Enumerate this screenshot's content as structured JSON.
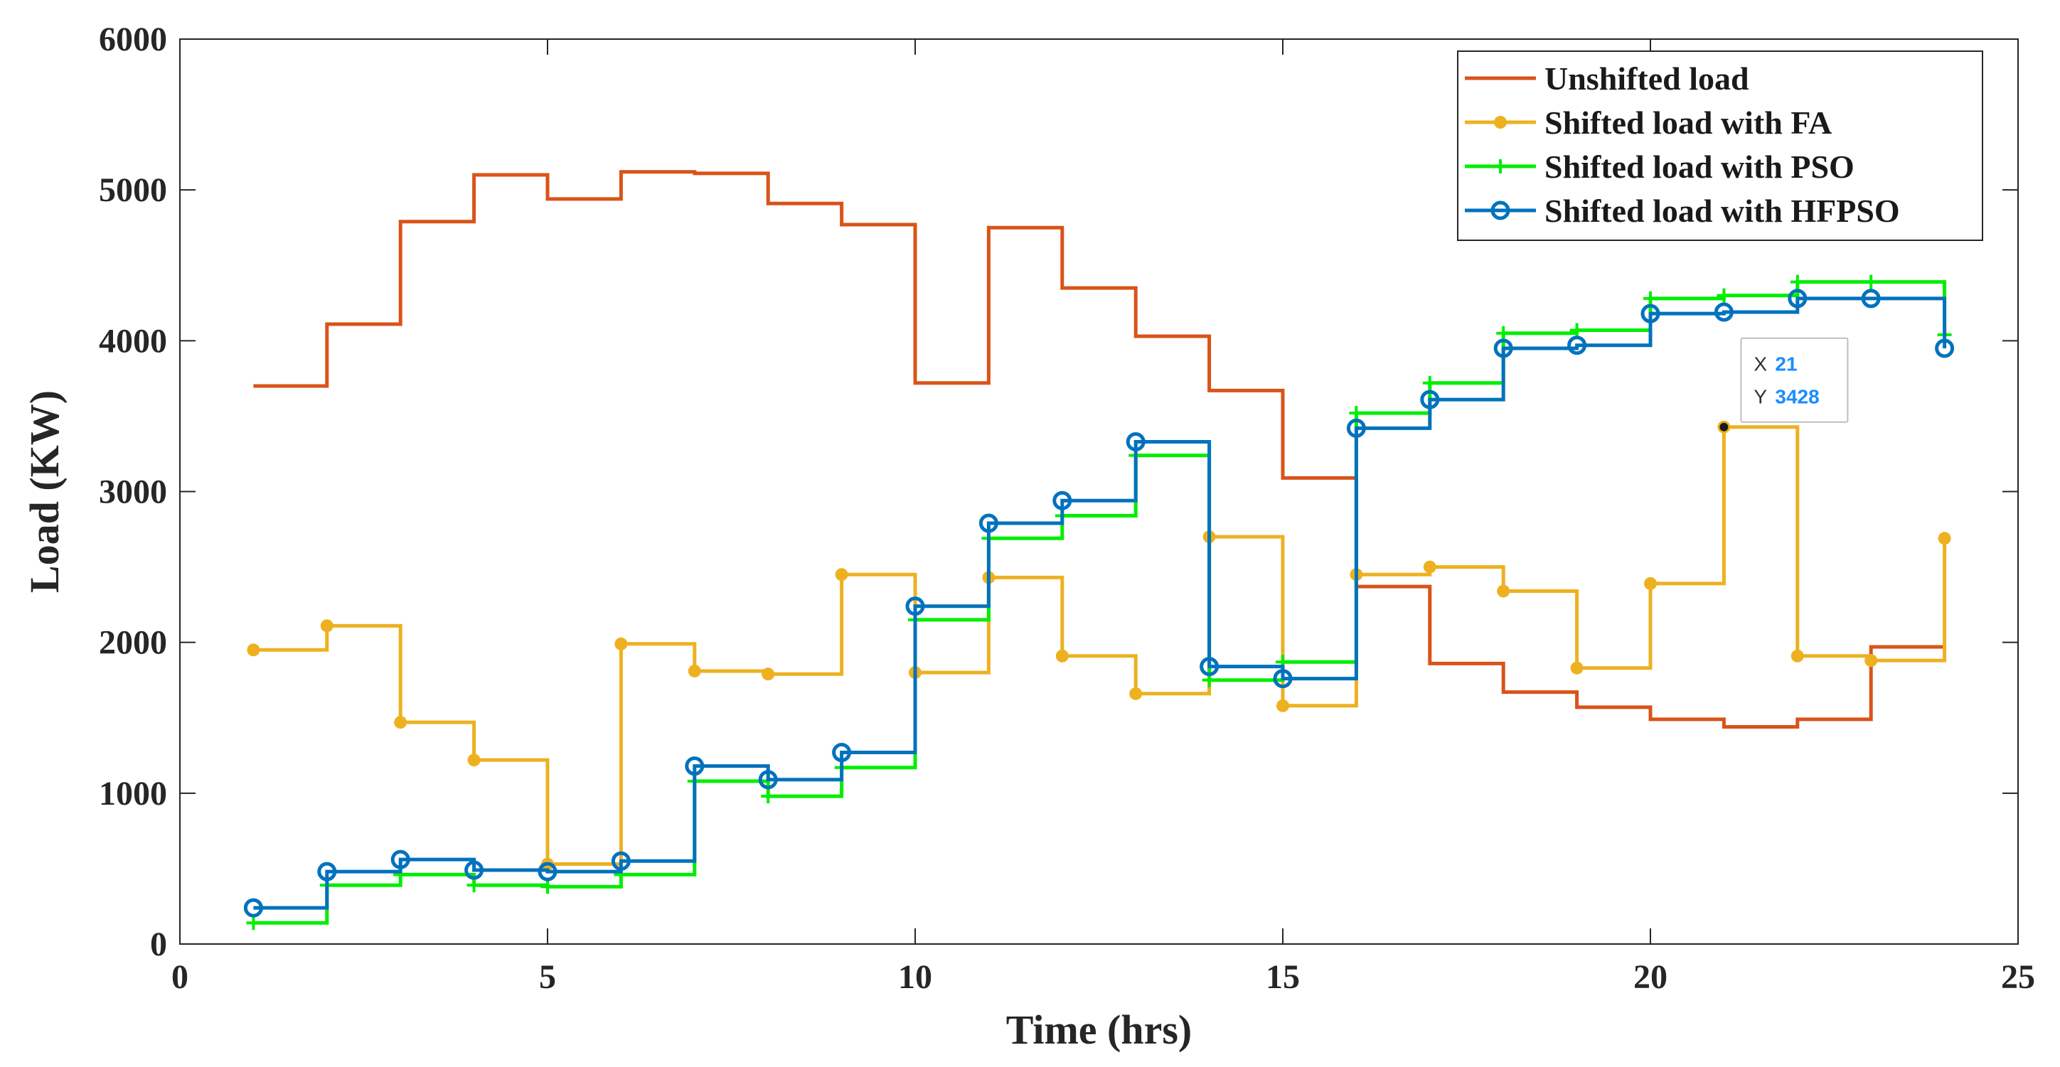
{
  "chart_data": {
    "type": "line",
    "step": true,
    "title": "",
    "xlabel": "Time (hrs)",
    "ylabel": "Load (KW)",
    "xlim": [
      0,
      25
    ],
    "ylim": [
      0,
      6000
    ],
    "xticks": [
      0,
      5,
      10,
      15,
      20,
      25
    ],
    "yticks": [
      0,
      1000,
      2000,
      3000,
      4000,
      5000,
      6000
    ],
    "x": [
      1,
      2,
      3,
      4,
      5,
      6,
      7,
      8,
      9,
      10,
      11,
      12,
      13,
      14,
      15,
      16,
      17,
      18,
      19,
      20,
      21,
      22,
      23,
      24
    ],
    "legend_position": "top-right",
    "series": [
      {
        "name": "Unshifted load",
        "color": "#d95319",
        "marker": "none",
        "values": [
          3700,
          4110,
          4790,
          5100,
          4940,
          5120,
          5110,
          4910,
          4770,
          3720,
          4750,
          4350,
          4030,
          3670,
          3090,
          2370,
          1860,
          1670,
          1570,
          1490,
          1440,
          1490,
          1970,
          1970
        ]
      },
      {
        "name": "Shifted load with FA",
        "color": "#edb120",
        "marker": "dot",
        "values": [
          1950,
          2110,
          1470,
          1220,
          530,
          1990,
          1810,
          1790,
          2450,
          1800,
          2430,
          1910,
          1660,
          2700,
          1580,
          2450,
          2500,
          2340,
          1830,
          2390,
          3428,
          1910,
          1880,
          2690
        ]
      },
      {
        "name": "Shifted load with PSO",
        "color": "#00ee00",
        "marker": "plus",
        "values": [
          140,
          390,
          460,
          390,
          380,
          460,
          1080,
          980,
          1170,
          2150,
          2690,
          2840,
          3240,
          1750,
          1870,
          3520,
          3720,
          4050,
          4070,
          4280,
          4300,
          4390,
          4390,
          4040
        ]
      },
      {
        "name": "Shifted load with HFPSO",
        "color": "#0072bd",
        "marker": "circle",
        "values": [
          240,
          480,
          560,
          490,
          480,
          550,
          1180,
          1090,
          1270,
          2240,
          2790,
          2940,
          3330,
          1840,
          1760,
          3420,
          3610,
          3950,
          3970,
          4180,
          4190,
          4280,
          4280,
          3950
        ]
      }
    ],
    "datatip": {
      "x_label": "X",
      "x_value": "21",
      "y_label": "Y",
      "y_value": "3428",
      "at_x": 21,
      "at_y": 3428
    }
  }
}
